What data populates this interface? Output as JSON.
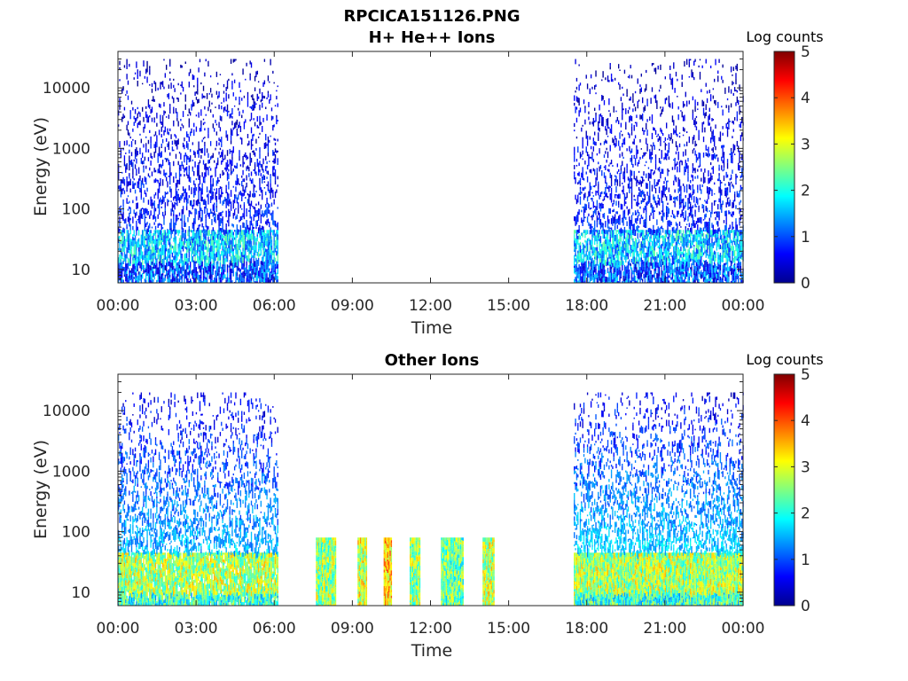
{
  "figure": {
    "title": "RPCICA151126.PNG"
  },
  "colormap": {
    "name": "jet",
    "stops": [
      "#00008f",
      "#0000ff",
      "#0080ff",
      "#00ffff",
      "#80ff80",
      "#ffff00",
      "#ff8000",
      "#ff0000",
      "#800000"
    ]
  },
  "chart_data": [
    {
      "type": "heatmap",
      "title": "H+ He++ Ions",
      "xlabel": "Time",
      "ylabel": "Energy (eV)",
      "xlim": [
        0,
        24
      ],
      "xticks": [
        0,
        3,
        6,
        9,
        12,
        15,
        18,
        21,
        24
      ],
      "xticklabels": [
        "00:00",
        "03:00",
        "06:00",
        "09:00",
        "12:00",
        "15:00",
        "18:00",
        "21:00",
        "00:00"
      ],
      "ylim": [
        6,
        40000
      ],
      "yscale": "log",
      "yticks": [
        10,
        100,
        1000,
        10000
      ],
      "yticklabels": [
        "10",
        "100",
        "1000",
        "10000"
      ],
      "colorbar": {
        "label": "Log counts",
        "range": [
          0,
          5
        ],
        "ticks": [
          "0",
          "1",
          "2",
          "3",
          "4",
          "5"
        ]
      },
      "data_intervals": [
        {
          "start": 0.0,
          "end": 6.15,
          "band_low_eV": 14,
          "band_high_eV": 45,
          "band_level": 1.6,
          "upper_level": 0.6,
          "max_energy_eV": 30000,
          "density": 0.45
        },
        {
          "start": 17.5,
          "end": 24.0,
          "band_low_eV": 14,
          "band_high_eV": 45,
          "band_level": 1.6,
          "upper_level": 0.6,
          "max_energy_eV": 30000,
          "density": 0.45
        }
      ]
    },
    {
      "type": "heatmap",
      "title": "Other Ions",
      "xlabel": "Time",
      "ylabel": "Energy (eV)",
      "xlim": [
        0,
        24
      ],
      "xticks": [
        0,
        3,
        6,
        9,
        12,
        15,
        18,
        21,
        24
      ],
      "xticklabels": [
        "00:00",
        "03:00",
        "06:00",
        "09:00",
        "12:00",
        "15:00",
        "18:00",
        "21:00",
        "00:00"
      ],
      "ylim": [
        6,
        40000
      ],
      "yscale": "log",
      "yticks": [
        10,
        100,
        1000,
        10000
      ],
      "yticklabels": [
        "10",
        "100",
        "1000",
        "10000"
      ],
      "colorbar": {
        "label": "Log counts",
        "range": [
          0,
          5
        ],
        "ticks": [
          "0",
          "1",
          "2",
          "3",
          "4",
          "5"
        ]
      },
      "data_intervals": [
        {
          "start": 0.0,
          "end": 6.15,
          "band_low_eV": 10,
          "band_high_eV": 45,
          "band_level": 2.7,
          "upper_level": 1.2,
          "max_energy_eV": 20000,
          "density": 0.6
        },
        {
          "start": 7.6,
          "end": 8.35,
          "band_low_eV": 6,
          "band_high_eV": 80,
          "band_level": 2.6,
          "upper_level": 1.2,
          "max_energy_eV": 80,
          "density": 1.0
        },
        {
          "start": 9.2,
          "end": 9.55,
          "band_low_eV": 6,
          "band_high_eV": 80,
          "band_level": 2.9,
          "upper_level": 1.3,
          "max_energy_eV": 80,
          "density": 1.0
        },
        {
          "start": 10.2,
          "end": 10.5,
          "band_low_eV": 6,
          "band_high_eV": 80,
          "band_level": 3.4,
          "upper_level": 1.5,
          "max_energy_eV": 80,
          "density": 1.0
        },
        {
          "start": 11.2,
          "end": 11.6,
          "band_low_eV": 6,
          "band_high_eV": 80,
          "band_level": 2.6,
          "upper_level": 1.8,
          "max_energy_eV": 80,
          "density": 1.0
        },
        {
          "start": 12.4,
          "end": 13.25,
          "band_low_eV": 6,
          "band_high_eV": 80,
          "band_level": 2.4,
          "upper_level": 1.0,
          "max_energy_eV": 80,
          "density": 1.0
        },
        {
          "start": 14.0,
          "end": 14.45,
          "band_low_eV": 6,
          "band_high_eV": 80,
          "band_level": 2.8,
          "upper_level": 1.6,
          "max_energy_eV": 80,
          "density": 1.0
        },
        {
          "start": 17.5,
          "end": 24.0,
          "band_low_eV": 10,
          "band_high_eV": 45,
          "band_level": 2.7,
          "upper_level": 1.3,
          "max_energy_eV": 20000,
          "density": 0.65
        }
      ]
    }
  ]
}
